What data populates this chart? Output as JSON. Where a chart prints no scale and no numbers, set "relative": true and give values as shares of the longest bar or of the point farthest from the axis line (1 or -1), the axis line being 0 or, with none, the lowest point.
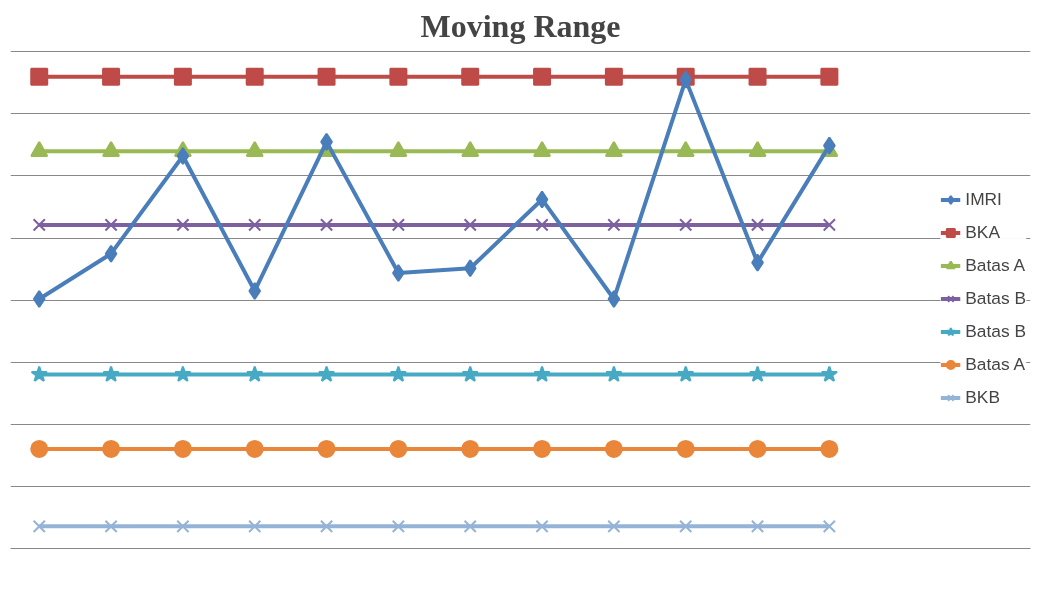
{
  "chart_data": {
    "type": "line",
    "title": "Moving Range",
    "relative": true,
    "grid": "y",
    "legend": "right",
    "line_style": "solid",
    "categories": [
      null,
      null,
      null,
      null,
      null,
      null,
      null,
      null,
      null,
      null,
      null,
      null
    ],
    "series": [
      {
        "name": "IMRI",
        "color": "#4a7ebb",
        "marker": "diamond",
        "values": [
          0.529,
          0.625,
          0.832,
          0.546,
          0.862,
          0.584,
          0.594,
          0.74,
          0.529,
          0.994,
          0.606,
          0.854
        ]
      },
      {
        "name": "BKA",
        "color": "#be4b48",
        "marker": "square",
        "values": [
          1,
          1,
          1,
          1,
          1,
          1,
          1,
          1,
          1,
          1,
          1,
          1
        ]
      },
      {
        "name": "Batas A",
        "color": "#98b954",
        "marker": "triangle",
        "values": [
          0.842,
          0.842,
          0.842,
          0.842,
          0.842,
          0.842,
          0.842,
          0.842,
          0.842,
          0.842,
          0.842,
          0.842
        ]
      },
      {
        "name": "Batas B",
        "color": "#7d60a0",
        "marker": "cross",
        "values": [
          0.686,
          0.686,
          0.686,
          0.686,
          0.686,
          0.686,
          0.686,
          0.686,
          0.686,
          0.686,
          0.686,
          0.686
        ]
      },
      {
        "name": "Batas B",
        "color": "#46aac5",
        "marker": "star",
        "values": [
          0.369,
          0.369,
          0.369,
          0.369,
          0.369,
          0.369,
          0.369,
          0.369,
          0.369,
          0.369,
          0.369,
          0.369
        ]
      },
      {
        "name": "Batas A",
        "color": "#e9863a",
        "marker": "circle",
        "values": [
          0.211,
          0.211,
          0.211,
          0.211,
          0.211,
          0.211,
          0.211,
          0.211,
          0.211,
          0.211,
          0.211,
          0.211
        ]
      },
      {
        "name": "BKB",
        "color": "#95b3d7",
        "marker": "cross",
        "values": [
          0.047,
          0.047,
          0.047,
          0.047,
          0.047,
          0.047,
          0.047,
          0.047,
          0.047,
          0.047,
          0.047,
          0.047
        ]
      }
    ]
  }
}
